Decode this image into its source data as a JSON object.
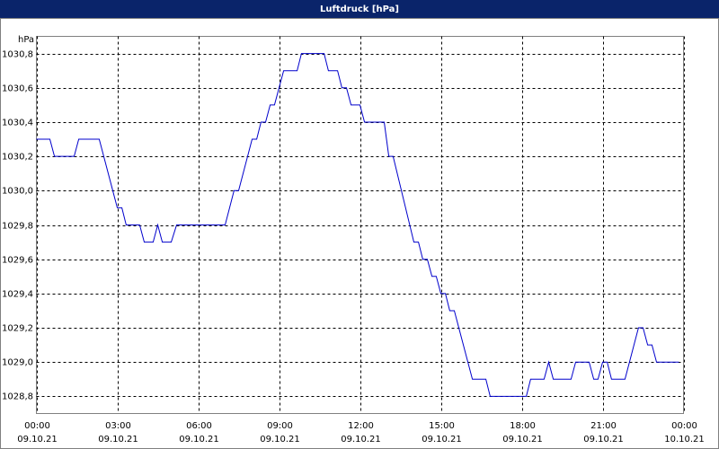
{
  "chart_data": {
    "type": "line",
    "title": "Luftdruck [hPa]",
    "y_unit": "hPa",
    "color": "#0000cc",
    "grid": true,
    "x": [
      0,
      0.5,
      0.67,
      1.4,
      1.57,
      2.33,
      3.0,
      3.17,
      3.33,
      3.83,
      4.0,
      4.33,
      4.5,
      4.67,
      5.0,
      5.2,
      7.0,
      7.33,
      7.5,
      8.0,
      8.17,
      8.33,
      8.5,
      8.67,
      8.83,
      9.17,
      9.67,
      9.83,
      10.67,
      10.83,
      11.17,
      11.33,
      11.5,
      11.67,
      12.0,
      12.17,
      12.9,
      13.07,
      13.23,
      14.0,
      14.17,
      14.33,
      14.5,
      14.67,
      14.83,
      15.0,
      15.17,
      15.33,
      15.5,
      16.17,
      16.67,
      16.83,
      18.17,
      18.33,
      18.83,
      19.0,
      19.17,
      19.83,
      20.0,
      20.5,
      20.67,
      20.83,
      21.0,
      21.17,
      21.33,
      21.83,
      22.33,
      22.5,
      22.67,
      22.83,
      23.0,
      23.83
    ],
    "values": [
      1030.3,
      1030.3,
      1030.2,
      1030.2,
      1030.3,
      1030.3,
      1029.9,
      1029.9,
      1029.8,
      1029.8,
      1029.7,
      1029.7,
      1029.8,
      1029.7,
      1029.7,
      1029.8,
      1029.8,
      1030.0,
      1030.0,
      1030.3,
      1030.3,
      1030.4,
      1030.4,
      1030.5,
      1030.5,
      1030.7,
      1030.7,
      1030.8,
      1030.8,
      1030.7,
      1030.7,
      1030.6,
      1030.6,
      1030.5,
      1030.5,
      1030.4,
      1030.4,
      1030.2,
      1030.2,
      1029.7,
      1029.7,
      1029.6,
      1029.6,
      1029.5,
      1029.5,
      1029.4,
      1029.4,
      1029.3,
      1029.3,
      1028.9,
      1028.9,
      1028.8,
      1028.8,
      1028.9,
      1028.9,
      1029.0,
      1028.9,
      1028.9,
      1029.0,
      1029.0,
      1028.9,
      1028.9,
      1029.0,
      1029.0,
      1028.9,
      1028.9,
      1029.2,
      1029.2,
      1029.1,
      1029.1,
      1029.0,
      1029.0
    ],
    "xlim": [
      0,
      24
    ],
    "xticks": [
      {
        "value": 0,
        "label": "00:00",
        "sublabel": "09.10.21"
      },
      {
        "value": 3,
        "label": "03:00",
        "sublabel": "09.10.21"
      },
      {
        "value": 6,
        "label": "06:00",
        "sublabel": "09.10.21"
      },
      {
        "value": 9,
        "label": "09:00",
        "sublabel": "09.10.21"
      },
      {
        "value": 12,
        "label": "12:00",
        "sublabel": "09.10.21"
      },
      {
        "value": 15,
        "label": "15:00",
        "sublabel": "09.10.21"
      },
      {
        "value": 18,
        "label": "18:00",
        "sublabel": "09.10.21"
      },
      {
        "value": 21,
        "label": "21:00",
        "sublabel": "09.10.21"
      },
      {
        "value": 24,
        "label": "00:00",
        "sublabel": "10.10.21"
      }
    ],
    "ylim": [
      1028.7,
      1030.9
    ],
    "yticks": [
      {
        "value": 1028.8,
        "label": "1028,8"
      },
      {
        "value": 1029.0,
        "label": "1029,0"
      },
      {
        "value": 1029.2,
        "label": "1029,2"
      },
      {
        "value": 1029.4,
        "label": "1029,4"
      },
      {
        "value": 1029.6,
        "label": "1029,6"
      },
      {
        "value": 1029.8,
        "label": "1029,8"
      },
      {
        "value": 1030.0,
        "label": "1030,0"
      },
      {
        "value": 1030.2,
        "label": "1030,2"
      },
      {
        "value": 1030.4,
        "label": "1030,4"
      },
      {
        "value": 1030.6,
        "label": "1030,6"
      },
      {
        "value": 1030.8,
        "label": "1030,8"
      }
    ]
  }
}
